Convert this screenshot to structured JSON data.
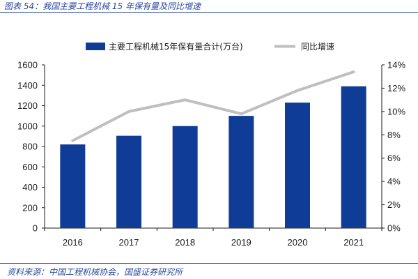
{
  "figure": {
    "title": "图表 54：我国主要工程机械 15 年保有量及同比增速",
    "source": "资料来源：中国工程机械协会，国盛证券研究所"
  },
  "colors": {
    "bar": "#0f3c96",
    "line": "#bfbfbf"
  },
  "chart_data": {
    "type": "bar",
    "categories": [
      "2016",
      "2017",
      "2018",
      "2019",
      "2020",
      "2021"
    ],
    "series": [
      {
        "name": "主要工程机械15年保有量合计(万台)",
        "type": "bar",
        "axis": "left",
        "values": [
          820,
          905,
          1000,
          1100,
          1230,
          1390
        ]
      },
      {
        "name": "同比增速",
        "type": "line",
        "axis": "right",
        "values": [
          7.5,
          10.0,
          11.0,
          9.8,
          11.8,
          13.4
        ]
      }
    ],
    "ylim": [
      0,
      1600
    ],
    "yticks": [
      "0",
      "200",
      "400",
      "600",
      "800",
      "1000",
      "1200",
      "1400",
      "1600"
    ],
    "y2lim": [
      0,
      14
    ],
    "y2ticks": [
      "0%",
      "2%",
      "4%",
      "6%",
      "8%",
      "10%",
      "12%",
      "14%"
    ],
    "legend": "top",
    "grid": false
  }
}
